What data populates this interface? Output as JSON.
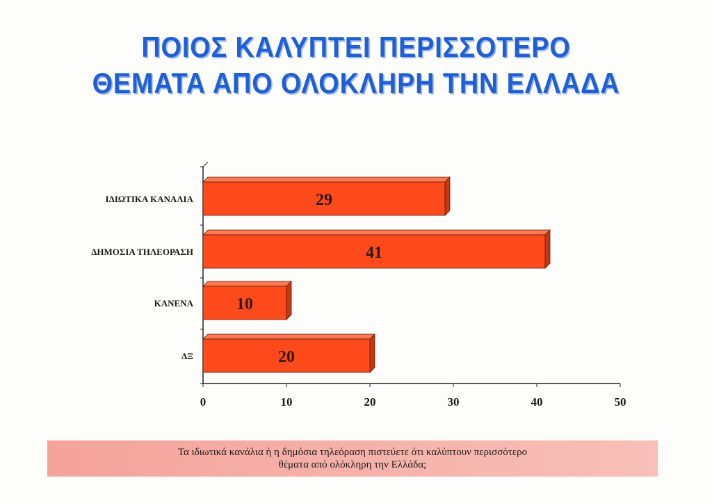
{
  "title_lines": [
    "ΠΟΙΟΣ ΚΑΛΥΠΤΕΙ ΠΕΡΙΣΣΟΤΕΡΟ",
    "ΘΕΜΑΤΑ ΑΠΟ ΟΛΟΚΛΗΡΗ ΤΗΝ ΕΛΛΑΔΑ"
  ],
  "question_lines": [
    "Τα ιδιωτικά κανάλια ή η δημόσια τηλεόραση πιστεύετε ότι καλύπτουν περισσότερο",
    "θέματα από ολόκληρη την Ελλάδα;"
  ],
  "colors": {
    "bar": "#ff4a1c",
    "bar_side": "#c23a14",
    "bar_top": "#ff7a52",
    "title": "#1f5fd6",
    "text": "#1a1a1a"
  },
  "chart_data": {
    "type": "bar",
    "orientation": "horizontal",
    "style": "3d",
    "categories": [
      "ΙΔΙΩΤΙΚΑ ΚΑΝΑΛΙΑ",
      "ΔΗΜΟΣΙΑ ΤΗΛΕΟΡΑΣΗ",
      "ΚΑΝΕΝΑ",
      "ΔΞ"
    ],
    "values": [
      29,
      41,
      10,
      20
    ],
    "data_labels": [
      "29",
      "41",
      "10",
      "20"
    ],
    "xlim": [
      0,
      50
    ],
    "xticks": [
      0,
      10,
      20,
      30,
      40,
      50
    ],
    "grid": false,
    "legend": "none"
  }
}
